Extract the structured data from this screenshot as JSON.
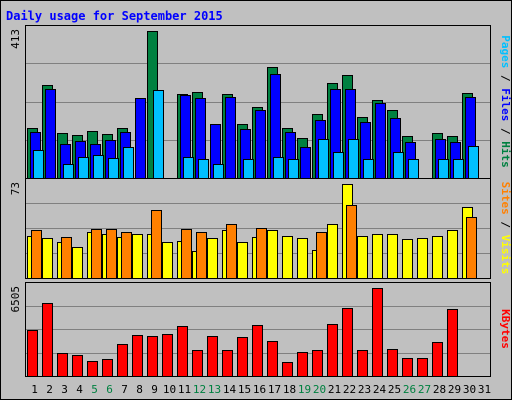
{
  "chart_data": {
    "type": "bar",
    "title": "Daily usage for September 2015",
    "categories": [
      "1",
      "2",
      "3",
      "4",
      "5",
      "6",
      "7",
      "8",
      "9",
      "10",
      "11",
      "12",
      "13",
      "14",
      "15",
      "16",
      "17",
      "18",
      "19",
      "20",
      "21",
      "22",
      "23",
      "24",
      "25",
      "26",
      "27",
      "28",
      "29",
      "30",
      "31"
    ],
    "weekend_days": [
      "5",
      "6",
      "12",
      "13",
      "19",
      "20",
      "26",
      "27"
    ],
    "colors": {
      "hits": "#008040",
      "files": "#0000ff",
      "pages": "#00c0ff",
      "visits": "#ffff00",
      "sites": "#ff8000",
      "kbytes": "#ff0000",
      "background": "#c0c0c0",
      "grid": "#808080",
      "weekday_label": "#000000",
      "weekend_label": "#008040",
      "title": "#0000ff"
    },
    "panels": [
      {
        "name": "hits-files-pages",
        "ymax_label": "413",
        "ymax": 413,
        "right_labels": [
          {
            "text": "Pages",
            "color": "#00c0ff"
          },
          {
            "text": " / ",
            "color": "#000000"
          },
          {
            "text": "Files",
            "color": "#0000ff"
          },
          {
            "text": " / ",
            "color": "#000000"
          },
          {
            "text": "Hits",
            "color": "#008040"
          }
        ],
        "series": [
          {
            "name": "Hits",
            "color": "#008040",
            "values": [
              140,
              262,
              126,
              120,
              132,
              124,
              140,
              0,
              413,
              0,
              236,
              242,
              0,
              236,
              152,
              200,
              312,
              140,
              112,
              180,
              268,
              290,
              172,
              220,
              190,
              118,
              0,
              126,
              118,
              240,
              0
            ]
          },
          {
            "name": "Files",
            "color": "#0000ff",
            "values": [
              128,
              250,
              96,
              104,
              96,
              108,
              128,
              226,
              0,
              0,
              234,
              226,
              152,
              228,
              138,
              190,
              292,
              128,
              88,
              162,
              250,
              250,
              158,
              210,
              168,
              100,
              0,
              110,
              100,
              228,
              0
            ]
          },
          {
            "name": "Pages",
            "color": "#00c0ff",
            "values": [
              80,
              0,
              40,
              60,
              66,
              56,
              86,
              0,
              246,
              0,
              60,
              52,
              40,
              0,
              54,
              0,
              60,
              52,
              0,
              110,
              72,
              110,
              52,
              0,
              74,
              54,
              0,
              52,
              54,
              90,
              0
            ]
          }
        ]
      },
      {
        "name": "visits-sites",
        "ymax_label": "73",
        "ymax": 73,
        "right_labels": [
          {
            "text": "Sites",
            "color": "#ff8000"
          },
          {
            "text": " / ",
            "color": "#000000"
          },
          {
            "text": "Visits",
            "color": "#ffff00"
          }
        ],
        "series": [
          {
            "name": "Visits",
            "color": "#ffff00",
            "values": [
              33,
              31,
              28,
              24,
              36,
              34,
              32,
              34,
              34,
              28,
              29,
              21,
              31,
              37,
              28,
              32,
              37,
              33,
              31,
              22,
              42,
              73,
              33,
              34,
              34,
              30,
              31,
              33,
              37,
              55,
              0
            ]
          },
          {
            "name": "Sites",
            "color": "#ff8000",
            "values": [
              37,
              0,
              32,
              0,
              38,
              38,
              36,
              0,
              53,
              0,
              38,
              36,
              0,
              42,
              0,
              39,
              0,
              0,
              0,
              36,
              0,
              57,
              0,
              0,
              0,
              0,
              0,
              0,
              0,
              47,
              0
            ]
          }
        ]
      },
      {
        "name": "kbytes",
        "ymax_label": "6505",
        "ymax": 6505,
        "right_labels": [
          {
            "text": "KBytes",
            "color": "#ff0000"
          }
        ],
        "series": [
          {
            "name": "KBytes",
            "color": "#ff0000",
            "values": [
              3390,
              5380,
              1690,
              1570,
              1080,
              1280,
              2340,
              3050,
              2940,
              3100,
              3710,
              1920,
              2980,
              1910,
              2870,
              3740,
              2600,
              1050,
              1790,
              1920,
              3860,
              4990,
              1920,
              6505,
              1970,
              1330,
              1310,
              2510,
              4970,
              0,
              0
            ]
          }
        ]
      }
    ]
  }
}
